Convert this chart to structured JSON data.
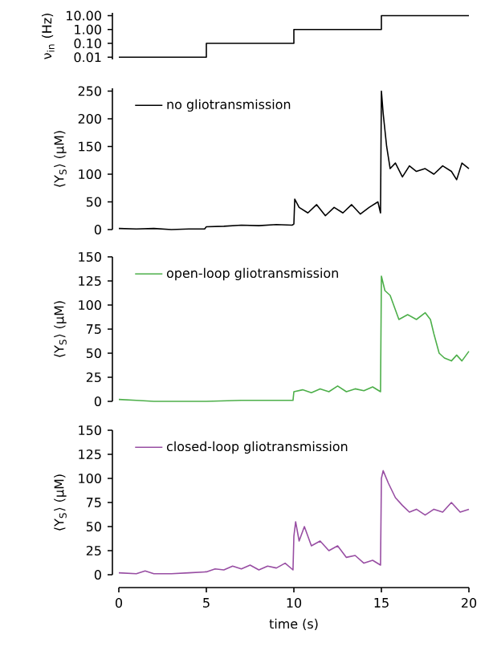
{
  "chart_data": [
    {
      "type": "step",
      "ylabel": "ν$_{in}$ (Hz)",
      "log": "y",
      "x": [
        0,
        5,
        10,
        15,
        20
      ],
      "xlim": [
        0,
        20
      ],
      "ylim": [
        0.007,
        16
      ],
      "yticks": [
        {
          "value": 0.01,
          "label": "0.01"
        },
        {
          "value": 0.1,
          "label": "0.10"
        },
        {
          "value": 1,
          "label": "1.00"
        },
        {
          "value": 10,
          "label": "10.00"
        }
      ],
      "tick_labels": "y",
      "series": [
        {
          "color": "#000000",
          "values": [
            0.01,
            0.1,
            1,
            10,
            10
          ]
        }
      ]
    },
    {
      "type": "line",
      "ylabel": "⟨Y$_{S}$⟩ (μM)",
      "legend": "top left",
      "xlim": [
        0,
        20
      ],
      "ylim": [
        0,
        255
      ],
      "yticks": [
        0,
        50,
        100,
        150,
        200,
        250
      ],
      "tick_labels": "y",
      "x": [
        0,
        1,
        2,
        3,
        4,
        4.9,
        5,
        6,
        7,
        8,
        9,
        9.9,
        10,
        10.05,
        10.3,
        10.8,
        11.3,
        11.8,
        12.3,
        12.8,
        13.3,
        13.8,
        14.3,
        14.8,
        14.95,
        15,
        15.1,
        15.3,
        15.5,
        15.8,
        16.2,
        16.6,
        17,
        17.5,
        18,
        18.5,
        19,
        19.3,
        19.6,
        20
      ],
      "series": [
        {
          "name": "no gliotransmission",
          "color": "#000000",
          "values": [
            2,
            1,
            2,
            0,
            1,
            1,
            5,
            6,
            8,
            7,
            9,
            8,
            10,
            55,
            40,
            30,
            45,
            25,
            40,
            30,
            45,
            28,
            40,
            50,
            30,
            250,
            210,
            150,
            110,
            120,
            95,
            115,
            105,
            110,
            100,
            115,
            105,
            90,
            120,
            110
          ]
        }
      ]
    },
    {
      "type": "line",
      "ylabel": "⟨Y$_{S}$⟩ (μM)",
      "legend": "top left",
      "xlim": [
        0,
        20
      ],
      "ylim": [
        0,
        150
      ],
      "yticks": [
        0,
        25,
        50,
        75,
        100,
        125,
        150
      ],
      "tick_labels": "y",
      "x": [
        0,
        1,
        2,
        4,
        5,
        7,
        9,
        9.95,
        10,
        10.5,
        11,
        11.5,
        12,
        12.5,
        13,
        13.5,
        14,
        14.5,
        14.95,
        15,
        15.2,
        15.5,
        15.8,
        16,
        16.5,
        17,
        17.5,
        17.8,
        18,
        18.3,
        18.6,
        19,
        19.3,
        19.6,
        20
      ],
      "series": [
        {
          "name": "open-loop gliotransmission",
          "color": "#4daf4a",
          "values": [
            2,
            1,
            0,
            0,
            0,
            1,
            1,
            1,
            10,
            12,
            9,
            13,
            10,
            16,
            10,
            13,
            11,
            15,
            10,
            130,
            115,
            110,
            95,
            85,
            90,
            85,
            92,
            85,
            70,
            50,
            45,
            42,
            48,
            42,
            52
          ]
        }
      ]
    },
    {
      "type": "line",
      "ylabel": "⟨Y$_{S}$⟩ (μM)",
      "xlabel": "time (s)",
      "legend": "top left",
      "xlim": [
        0,
        20
      ],
      "xticks": [
        0,
        5,
        10,
        15,
        20
      ],
      "ylim": [
        0,
        150
      ],
      "yticks": [
        0,
        25,
        50,
        75,
        100,
        125,
        150
      ],
      "x": [
        0,
        1,
        1.5,
        2,
        3,
        4,
        5,
        5.5,
        6,
        6.5,
        7,
        7.5,
        8,
        8.5,
        9,
        9.5,
        9.95,
        10,
        10.1,
        10.3,
        10.6,
        11,
        11.5,
        12,
        12.5,
        13,
        13.5,
        14,
        14.5,
        14.95,
        15,
        15.1,
        15.4,
        15.8,
        16.2,
        16.6,
        17,
        17.5,
        18,
        18.5,
        19,
        19.5,
        20
      ],
      "series": [
        {
          "name": "closed-loop gliotransmission",
          "color": "#984ea3",
          "values": [
            2,
            1,
            4,
            1,
            1,
            2,
            3,
            6,
            5,
            9,
            6,
            10,
            5,
            9,
            7,
            12,
            5,
            40,
            55,
            35,
            50,
            30,
            35,
            25,
            30,
            18,
            20,
            12,
            15,
            10,
            100,
            108,
            95,
            80,
            72,
            65,
            68,
            62,
            68,
            65,
            75,
            65,
            68
          ]
        }
      ]
    }
  ]
}
